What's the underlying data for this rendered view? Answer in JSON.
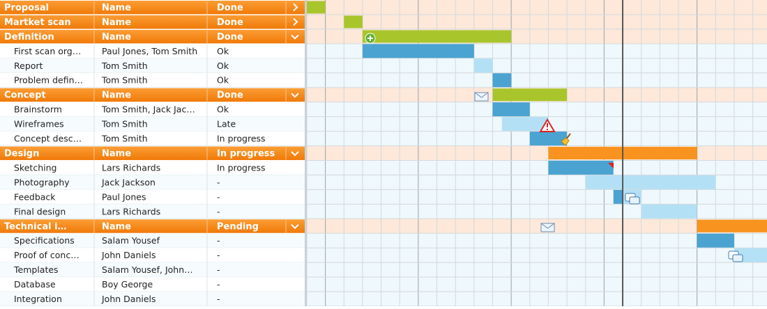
{
  "groups": [
    {
      "name": "Proposal",
      "name_header": "Name",
      "status_header": "Done",
      "expanded": false,
      "bar": {
        "start": 0,
        "end": 1,
        "color": "#a9c52c"
      },
      "tasks": []
    },
    {
      "name": "Martket scan",
      "name_header": "Name",
      "status_header": "Done",
      "expanded": false,
      "bar": {
        "start": 2,
        "end": 3,
        "color": "#a9c52c"
      },
      "tasks": []
    },
    {
      "name": "Definition",
      "name_header": "Name",
      "status_header": "Done",
      "expanded": true,
      "bar": {
        "start": 3,
        "end": 11,
        "color": "#a9c52c"
      },
      "tasks": [
        {
          "name": "First scan org…",
          "person": "Paul Jones, Tom Smith",
          "status": "Ok",
          "bars": [
            {
              "start": 3,
              "end": 9,
              "color": "#4aa3d0"
            }
          ]
        },
        {
          "name": "Report",
          "person": "Tom Smith",
          "status": "Ok",
          "bars": [
            {
              "start": 9,
              "end": 10,
              "color": "#b3e0f5"
            }
          ]
        },
        {
          "name": "Problem defin…",
          "person": "Tom Smith",
          "status": "Ok",
          "bars": [
            {
              "start": 10,
              "end": 11,
              "color": "#4aa3d0"
            }
          ]
        }
      ]
    },
    {
      "name": "Concept",
      "name_header": "Name",
      "status_header": "Done",
      "expanded": true,
      "bar": {
        "start": 10,
        "end": 14,
        "color": "#a9c52c"
      },
      "tasks": [
        {
          "name": "Brainstorm",
          "person": "Tom Smith, Jack Jac…",
          "status": "Ok",
          "bars": [
            {
              "start": 10,
              "end": 12,
              "color": "#4aa3d0"
            }
          ]
        },
        {
          "name": "Wireframes",
          "person": "Tom Smith",
          "status": "Late",
          "bars": [
            {
              "start": 10.5,
              "end": 13,
              "color": "#b3e0f5"
            }
          ]
        },
        {
          "name": "Concept desc…",
          "person": "Tom Smith",
          "status": "In progress",
          "bars": [
            {
              "start": 12,
              "end": 14,
              "color": "#4aa3d0"
            }
          ]
        }
      ]
    },
    {
      "name": "Design",
      "name_header": "Name",
      "status_header": "In progress",
      "expanded": true,
      "bar": {
        "start": 13,
        "end": 21,
        "color": "#f7931e"
      },
      "tasks": [
        {
          "name": "Sketching",
          "person": "Lars Richards",
          "status": "In progress",
          "bars": [
            {
              "start": 13,
              "end": 16.5,
              "color": "#4aa3d0"
            }
          ]
        },
        {
          "name": "Photography",
          "person": "Jack Jackson",
          "status": "-",
          "bars": [
            {
              "start": 15,
              "end": 22,
              "color": "#b3e0f5"
            }
          ]
        },
        {
          "name": "Feedback",
          "person": "Paul Jones",
          "status": "-",
          "bars": [
            {
              "start": 16.5,
              "end": 17,
              "color": "#4aa3d0"
            },
            {
              "start": 17,
              "end": 18,
              "color": "#b3e0f5"
            }
          ]
        },
        {
          "name": "Final design",
          "person": "Lars Richards",
          "status": "-",
          "bars": [
            {
              "start": 18,
              "end": 21,
              "color": "#b3e0f5"
            }
          ]
        }
      ]
    },
    {
      "name": "Technical i…",
      "name_header": "Name",
      "status_header": "Pending",
      "expanded": true,
      "bar": {
        "start": 21,
        "end": 25,
        "color": "#f7931e"
      },
      "tasks": [
        {
          "name": "Specifications",
          "person": "Salam Yousef",
          "status": "-",
          "bars": [
            {
              "start": 21,
              "end": 23,
              "color": "#4aa3d0"
            }
          ]
        },
        {
          "name": "Proof of conc…",
          "person": "John Daniels",
          "status": "-",
          "bars": [
            {
              "start": 23,
              "end": 25,
              "color": "#b3e0f5"
            }
          ]
        },
        {
          "name": "Templates",
          "person": "Salam Yousef, John…",
          "status": "-",
          "bars": []
        },
        {
          "name": "Database",
          "person": "Boy George",
          "status": "-",
          "bars": []
        },
        {
          "name": "Integration",
          "person": "John Daniels",
          "status": "-",
          "bars": []
        }
      ]
    }
  ]
}
